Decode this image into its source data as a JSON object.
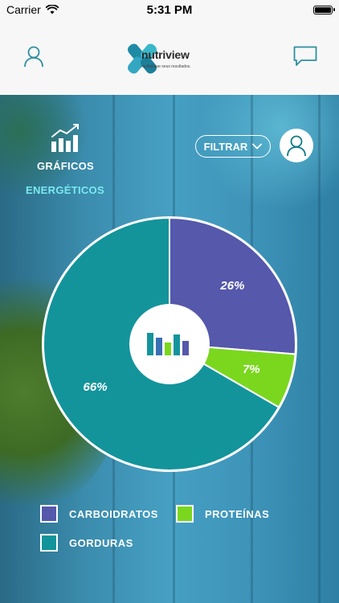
{
  "status_bar": {
    "carrier": "Carrier",
    "time": "5:31 PM"
  },
  "header": {
    "logo_name": "nutriview",
    "logo_tagline": "multiplique seus resultados.",
    "left_icon": "profile-icon",
    "right_icon": "chat-icon"
  },
  "section": {
    "graficos_label": "GRÁFICOS",
    "energeticos_label": "ENERGÉTICOS",
    "filter_label": "FILTRAR"
  },
  "chart_data": {
    "type": "pie",
    "categories": [
      "CARBOIDRATOS",
      "PROTEÍNAS",
      "GORDURAS"
    ],
    "values": [
      26,
      7,
      66
    ],
    "labels": [
      "26%",
      "7%",
      "66%"
    ],
    "colors": [
      "#5558ab",
      "#7ad71e",
      "#13949b"
    ]
  },
  "legend": [
    {
      "label": "CARBOIDRATOS",
      "color": "#5558ab"
    },
    {
      "label": "PROTEÍNAS",
      "color": "#7ad71e"
    },
    {
      "label": "GORDURAS",
      "color": "#13949b"
    }
  ]
}
